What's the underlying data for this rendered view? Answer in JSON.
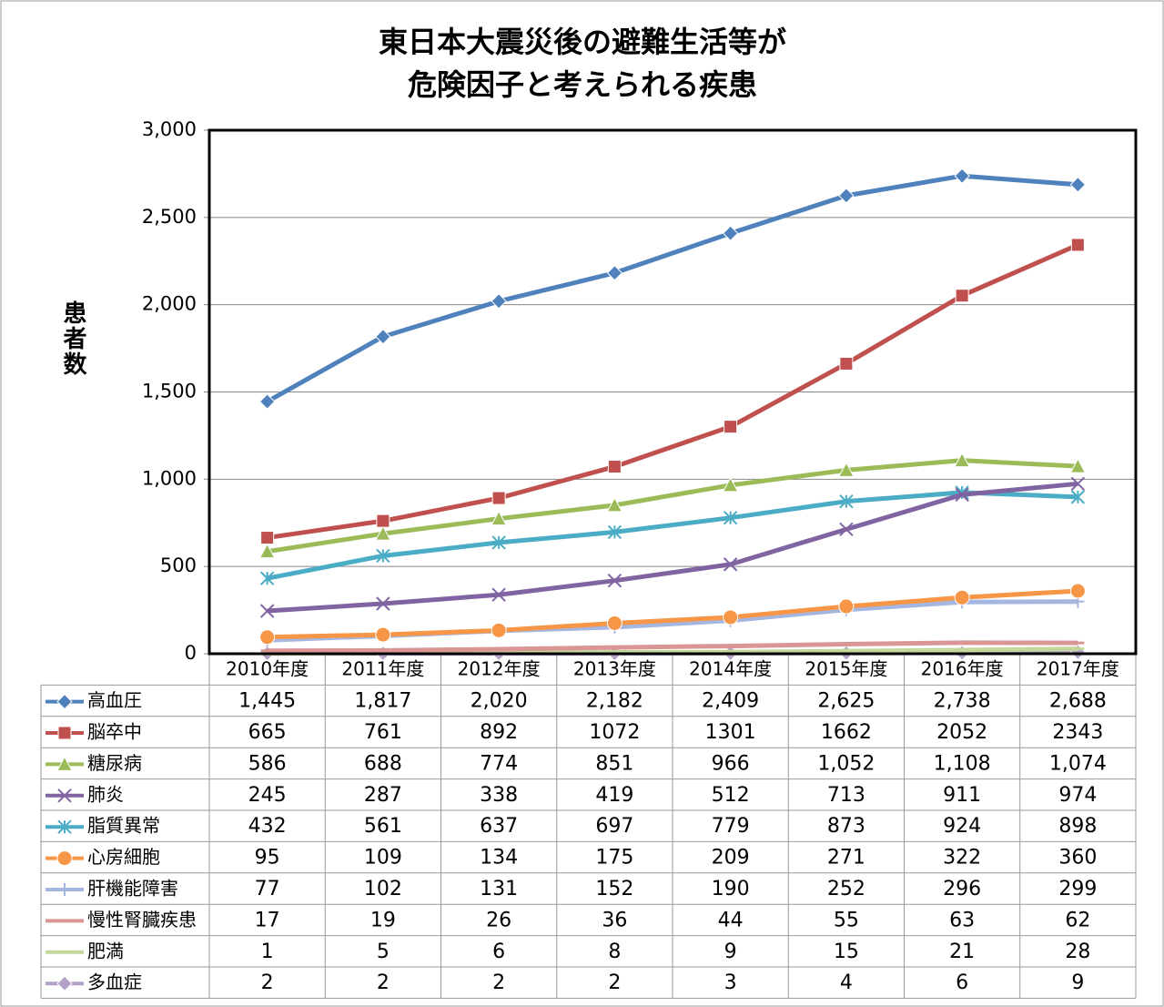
{
  "chart_data": {
    "type": "line",
    "title": [
      "東日本大震災後の避難生活等が",
      "危険因子と考えられる疾患"
    ],
    "y_label": "患者数",
    "categories": [
      "2010年度",
      "2011年度",
      "2012年度",
      "2013年度",
      "2014年度",
      "2015年度",
      "2016年度",
      "2017年度"
    ],
    "ylim": [
      0,
      3000
    ],
    "yticks": [
      0,
      500,
      {
        "value": 1000,
        "label": "1,000"
      },
      {
        "value": 1500,
        "label": "1,500"
      },
      {
        "value": 2000,
        "label": "2,000"
      },
      {
        "value": 2500,
        "label": "2,500"
      },
      {
        "value": 3000,
        "label": "3,000"
      }
    ],
    "grid": true,
    "series": [
      {
        "name": "高血圧",
        "color": "#4f81bd",
        "marker": "diamond",
        "values": [
          1445,
          1817,
          2020,
          2182,
          2409,
          2625,
          2738,
          2688
        ],
        "value_labels": [
          "1,445",
          "1,817",
          "2,020",
          "2,182",
          "2,409",
          "2,625",
          "2,738",
          "2,688"
        ]
      },
      {
        "name": "脳卒中",
        "color": "#c0504d",
        "marker": "square",
        "values": [
          665,
          761,
          892,
          1072,
          1301,
          1662,
          2052,
          2343
        ]
      },
      {
        "name": "糖尿病",
        "color": "#9bbb59",
        "marker": "triangle",
        "values": [
          586,
          688,
          774,
          851,
          966,
          1052,
          1108,
          1074
        ],
        "value_labels": [
          "586",
          "688",
          "774",
          "851",
          "966",
          "1,052",
          "1,108",
          "1,074"
        ]
      },
      {
        "name": "肺炎",
        "color": "#8064a2",
        "marker": "x",
        "values": [
          245,
          287,
          338,
          419,
          512,
          713,
          911,
          974
        ]
      },
      {
        "name": "脂質異常",
        "color": "#4bacc6",
        "marker": "asterisk",
        "values": [
          432,
          561,
          637,
          697,
          779,
          873,
          924,
          898
        ]
      },
      {
        "name": "心房細胞",
        "color": "#f79646",
        "marker": "circle",
        "values": [
          95,
          109,
          134,
          175,
          209,
          271,
          322,
          360
        ]
      },
      {
        "name": "肝機能障害",
        "color": "#a5b6e0",
        "marker": "plus",
        "values": [
          77,
          102,
          131,
          152,
          190,
          252,
          296,
          299
        ]
      },
      {
        "name": "慢性腎臓疾患",
        "color": "#d99694",
        "marker": "dash",
        "values": [
          17,
          19,
          26,
          36,
          44,
          55,
          63,
          62
        ]
      },
      {
        "name": "肥満",
        "color": "#c3d69b",
        "marker": "dash",
        "values": [
          1,
          5,
          6,
          8,
          9,
          15,
          21,
          28
        ]
      },
      {
        "name": "多血症",
        "color": "#b3a2c7",
        "marker": "diamond",
        "values": [
          2,
          2,
          2,
          2,
          3,
          4,
          6,
          9
        ]
      }
    ]
  }
}
